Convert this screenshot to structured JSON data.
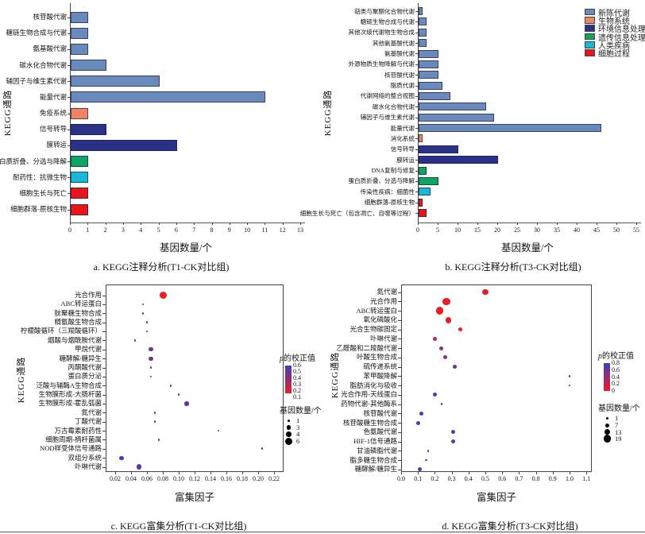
{
  "colors": {
    "metabolism": "#6b8abc",
    "organismal": "#f08364",
    "environmental": "#2b3186",
    "genetic": "#0ea563",
    "human": "#1ab8d8",
    "cellular": "#e8151d",
    "p_low": "#ee1c25",
    "p_high": "#3f3cbf",
    "axis": "#444444"
  },
  "legend_groups": [
    {
      "key": "metabolism",
      "label": "新陈代谢"
    },
    {
      "key": "organismal",
      "label": "生物系统"
    },
    {
      "key": "environmental",
      "label": "环境信息处理"
    },
    {
      "key": "genetic",
      "label": "遗传信息处理"
    },
    {
      "key": "human",
      "label": "人类疾病"
    },
    {
      "key": "cellular",
      "label": "细胞过程"
    }
  ],
  "chart_data": [
    {
      "id": "a",
      "type": "bar",
      "title": "a. KEGG注释分析(T1-CK对比组)",
      "xlabel": "基因数量/个",
      "ylabel": "KEGG通路",
      "xlim": [
        0,
        13
      ],
      "xtick_step": 1,
      "categories": [
        "核苷酸代谢",
        "糖链生物合成与代谢",
        "氨基酸代谢",
        "碳水化合物代谢",
        "辅因子与维生素代谢",
        "能量代谢",
        "免疫系统",
        "信号转导",
        "膜转运",
        "蛋白质折叠、分选与降解",
        "耐药性：抗微生物",
        "细胞生长与死亡",
        "细胞群落-原核生物"
      ],
      "values": [
        1,
        1,
        1,
        2,
        5,
        11,
        1,
        2,
        6,
        1,
        1,
        1,
        1
      ],
      "groups": [
        "metabolism",
        "metabolism",
        "metabolism",
        "metabolism",
        "metabolism",
        "metabolism",
        "organismal",
        "environmental",
        "environmental",
        "genetic",
        "human",
        "cellular",
        "cellular"
      ]
    },
    {
      "id": "b",
      "type": "bar",
      "title": "b. KEGG注释分析(T3-CK对比组)",
      "xlabel": "基因数量/个",
      "ylabel": "KEGG通路",
      "xlim": [
        0,
        55
      ],
      "xtick_step": 5,
      "categories": [
        "萜类与聚酮化合物代谢",
        "糖链生物合成与代谢",
        "其他次级代谢物生物合成",
        "其他氨基酸代谢",
        "氨基酸代谢",
        "外源物质生物降解与代谢",
        "核苷酸代谢",
        "脂质代谢",
        "代谢网络的整合视图",
        "碳水化合物代谢",
        "辅因子与维生素代谢",
        "能量代谢",
        "消化系统",
        "信号转导",
        "膜转运",
        "DNA复制与修复",
        "蛋白质折叠、分选与降解",
        "传染性疾病：细菌性",
        "细胞群落-原核生物",
        "细胞生长与死亡（包含凋亡、自噬等过程）"
      ],
      "values": [
        1,
        2,
        2,
        2,
        5,
        5,
        5,
        6,
        8,
        17,
        19,
        46,
        1,
        10,
        20,
        2,
        5,
        3,
        1,
        2
      ],
      "groups": [
        "metabolism",
        "metabolism",
        "metabolism",
        "metabolism",
        "metabolism",
        "metabolism",
        "metabolism",
        "metabolism",
        "metabolism",
        "metabolism",
        "metabolism",
        "metabolism",
        "organismal",
        "environmental",
        "environmental",
        "genetic",
        "genetic",
        "human",
        "cellular",
        "cellular"
      ]
    },
    {
      "id": "c",
      "type": "scatter",
      "title": "c. KEGG富集分析(T1-CK对比组)",
      "xlabel": "富集因子",
      "ylabel": "KEGG通路",
      "xticks": [
        "0.02",
        "0.04",
        "0.06",
        "0.08",
        "0.10",
        "0.12",
        "0.14",
        "0.16",
        "0.18",
        "0.20",
        "0.22"
      ],
      "categories": [
        "光合作用",
        "ABC转运蛋白",
        "肽聚糖生物合成",
        "精氨酸生物合成",
        "柠檬酸循环（三羧酸循环）",
        "烟酸与烟酰胺代谢",
        "甲烷代谢",
        "糖酵解/糖异生",
        "丙酮酸代谢",
        "蛋白质分泌",
        "泛酸与辅酶A生物合成",
        "生物膜形成-大肠杆菌",
        "生物膜形成-霍乱弧菌",
        "氮代谢",
        "丁酸代谢",
        "万古霉素耐药性",
        "细胞周期-柄杆菌属",
        "NOD样受体信号通路",
        "双组分系统",
        "卟啉代谢"
      ],
      "x": [
        0.08,
        0.055,
        0.055,
        0.06,
        0.06,
        0.045,
        0.065,
        0.065,
        0.065,
        0.065,
        0.09,
        0.1,
        0.11,
        0.07,
        0.07,
        0.15,
        0.075,
        0.205,
        0.028,
        0.05
      ],
      "n": [
        6,
        1,
        1,
        1,
        1,
        1,
        3,
        3,
        1,
        1,
        1,
        1,
        3,
        1,
        1,
        1,
        1,
        1,
        3,
        4
      ],
      "p": [
        0.1,
        0.5,
        0.5,
        0.5,
        0.5,
        0.5,
        0.45,
        0.45,
        0.5,
        0.5,
        0.5,
        0.55,
        0.5,
        0.5,
        0.5,
        0.55,
        0.5,
        0.55,
        0.55,
        0.5
      ],
      "legend": {
        "p_title": "p的校正值",
        "p_ticks": [
          "0.6",
          "0.5",
          "0.4",
          "0.3",
          "0.2",
          "0.1"
        ],
        "p_range": [
          0.1,
          0.6
        ],
        "size_title": "基因数量/个",
        "size_ticks": [
          1,
          3,
          4,
          6
        ]
      }
    },
    {
      "id": "d",
      "type": "scatter",
      "title": "d. KEGG富集分析(T3-CK对比组)",
      "xlabel": "富集因子",
      "ylabel": "KEGG通路",
      "xticks": [
        "0.0",
        "0.1",
        "0.2",
        "0.3",
        "0.4",
        "0.5",
        "0.6",
        "0.7",
        "0.8",
        "0.9",
        "1.0",
        "1.1"
      ],
      "categories": [
        "氮代谢",
        "光合作用",
        "ABC转运蛋白",
        "氧化磷酸化",
        "光合生物碳固定",
        "卟啉代谢",
        "乙醛酸和二羧酸代谢",
        "叶酸生物合成",
        "硫传递系统",
        "苯甲酸降解",
        "脂肪消化与吸收",
        "光合作用-天线蛋白",
        "药物代谢-其他酶系",
        "核苷酸代谢",
        "核苷酸糖生物合成",
        "色氨酸代谢",
        "HIF-1信号通路",
        "甘油磷脂代谢",
        "脂多糖生物合成",
        "糖酵解/糖异生"
      ],
      "x": [
        0.5,
        0.27,
        0.23,
        0.28,
        0.35,
        0.2,
        0.24,
        0.26,
        0.32,
        1.0,
        1.0,
        0.2,
        0.24,
        0.12,
        0.1,
        0.31,
        0.31,
        0.16,
        0.15,
        0.11
      ],
      "n": [
        13,
        19,
        19,
        13,
        7,
        7,
        7,
        7,
        7,
        1,
        1,
        7,
        1,
        7,
        7,
        7,
        7,
        1,
        1,
        7
      ],
      "p": [
        0.03,
        0.02,
        0.02,
        0.03,
        0.05,
        0.25,
        0.4,
        0.45,
        0.6,
        0.75,
        0.75,
        0.7,
        0.75,
        0.75,
        0.75,
        0.7,
        0.7,
        0.75,
        0.75,
        0.75
      ],
      "legend": {
        "p_title": "p的校正值",
        "p_ticks": [
          "0.8",
          "0.6",
          "0.4",
          "0.2",
          "0"
        ],
        "p_range": [
          0,
          0.8
        ],
        "size_title": "基因数量/个",
        "size_ticks": [
          1,
          7,
          13,
          19
        ]
      }
    }
  ]
}
